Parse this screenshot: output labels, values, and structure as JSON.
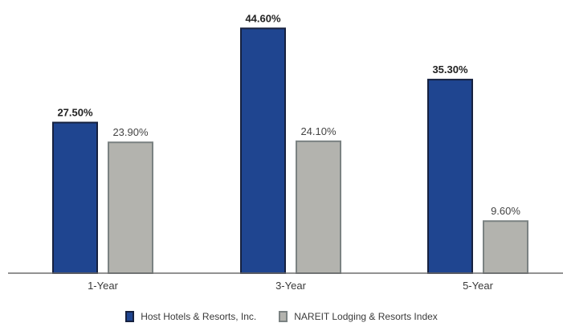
{
  "chart_data": {
    "type": "bar",
    "title": "",
    "xlabel": "",
    "ylabel": "",
    "categories": [
      "1-Year",
      "3-Year",
      "5-Year"
    ],
    "ylim": [
      0,
      46.4
    ],
    "grid": false,
    "legend_position": "bottom-center",
    "series": [
      {
        "name": "Host Hotels & Resorts, Inc.",
        "values": [
          27.5,
          44.6,
          35.3
        ],
        "labels": [
          "27.50%",
          "44.60%",
          "35.30%"
        ],
        "color": "#1f4590",
        "border": "#16213f",
        "label_bold": true
      },
      {
        "name": "NAREIT Lodging & Resorts Index",
        "values": [
          23.9,
          24.1,
          9.6
        ],
        "labels": [
          "23.90%",
          "24.10%",
          "9.60%"
        ],
        "color": "#b3b3ae",
        "border": "#7b8282",
        "label_bold": false
      }
    ]
  }
}
